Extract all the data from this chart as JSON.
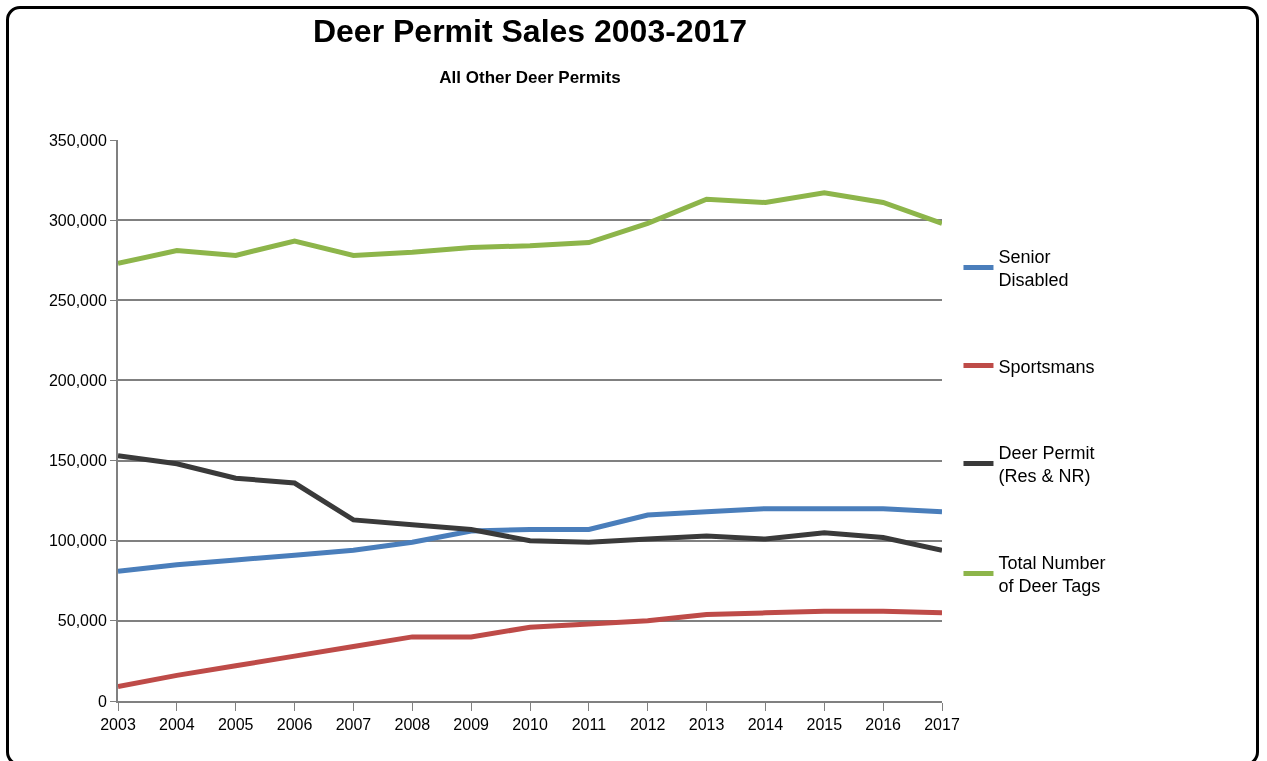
{
  "chart_data": {
    "type": "line",
    "title": "Deer Permit Sales 2003-2017",
    "subtitle": "All Other Deer Permits",
    "categories": [
      "2003",
      "2004",
      "2005",
      "2006",
      "2007",
      "2008",
      "2009",
      "2010",
      "2011",
      "2012",
      "2013",
      "2014",
      "2015",
      "2016",
      "2017"
    ],
    "series": [
      {
        "name": "Senior\nDisabled",
        "color": "#4a7ebb",
        "values": [
          81000,
          85000,
          88000,
          91000,
          94000,
          99000,
          106000,
          107000,
          107000,
          116000,
          118000,
          120000,
          120000,
          120000,
          118000
        ]
      },
      {
        "name": "Sportsmans",
        "color": "#be4b48",
        "values": [
          9000,
          16000,
          22000,
          28000,
          34000,
          40000,
          40000,
          46000,
          48000,
          50000,
          54000,
          55000,
          56000,
          56000,
          55000
        ]
      },
      {
        "name": "Deer Permit\n(Res & NR)",
        "color": "#3a3a3a",
        "values": [
          153000,
          148000,
          139000,
          136000,
          113000,
          110000,
          107000,
          100000,
          99000,
          101000,
          103000,
          101000,
          105000,
          102000,
          94000
        ]
      },
      {
        "name": "Total Number\nof Deer Tags",
        "color": "#8db54a",
        "values": [
          273000,
          281000,
          278000,
          287000,
          278000,
          280000,
          283000,
          284000,
          286000,
          298000,
          313000,
          311000,
          317000,
          311000,
          298000
        ]
      }
    ],
    "ylim": [
      0,
      350000
    ],
    "yticks": [
      {
        "value": 0,
        "label": "0"
      },
      {
        "value": 50000,
        "label": "50,000"
      },
      {
        "value": 100000,
        "label": "100,000"
      },
      {
        "value": 150000,
        "label": "150,000"
      },
      {
        "value": 200000,
        "label": "200,000"
      },
      {
        "value": 250000,
        "label": "250,000"
      },
      {
        "value": 300000,
        "label": "300,000"
      },
      {
        "value": 350000,
        "label": "350,000"
      }
    ],
    "grid": "y",
    "legend": "right",
    "marker": "none",
    "line_style": "solid"
  }
}
